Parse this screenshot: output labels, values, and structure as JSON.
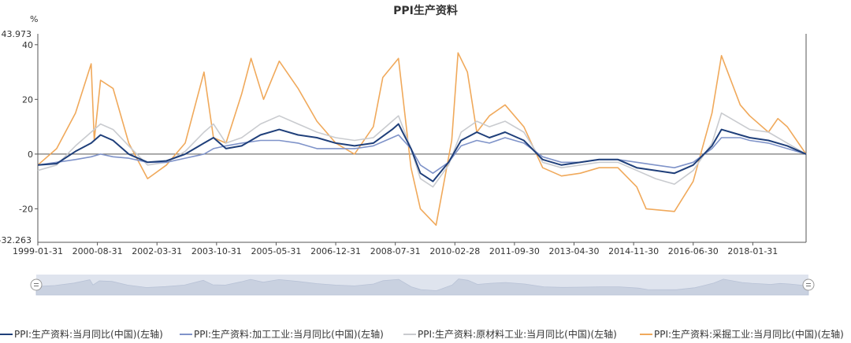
{
  "chart_data": {
    "type": "line",
    "title": "PPI生产资料",
    "y_unit": "%",
    "ylim": [
      -32.263,
      43.973
    ],
    "y_ticks": [
      40,
      20,
      0,
      -20
    ],
    "y_extent_labels": [
      "43.973",
      "-32.263"
    ],
    "x_tick_labels": [
      "1999-01-31",
      "2000-08-31",
      "2002-03-31",
      "2003-10-31",
      "2005-05-31",
      "2006-12-31",
      "2008-07-31",
      "2010-02-28",
      "2011-09-30",
      "2013-04-30",
      "2014-11-30",
      "2016-06-30",
      "2018-01-31"
    ],
    "x_range": [
      "1999-01-31",
      "2019-06-30"
    ],
    "grid": false,
    "legend_position": "bottom",
    "has_zoom_slider": true,
    "series": [
      {
        "name": "PPI:生产资料:当月同比(中国)(左轴)",
        "color": "#1f3f7a",
        "points": [
          [
            "1999-01",
            -4
          ],
          [
            "1999-07",
            -3.5
          ],
          [
            "2000-01",
            1
          ],
          [
            "2000-06",
            4
          ],
          [
            "2000-09",
            7
          ],
          [
            "2001-01",
            5
          ],
          [
            "2001-06",
            0
          ],
          [
            "2001-12",
            -3
          ],
          [
            "2002-06",
            -2.5
          ],
          [
            "2002-12",
            0
          ],
          [
            "2003-06",
            4
          ],
          [
            "2003-09",
            6
          ],
          [
            "2004-01",
            2
          ],
          [
            "2004-06",
            3
          ],
          [
            "2004-12",
            7
          ],
          [
            "2005-06",
            9
          ],
          [
            "2005-12",
            7
          ],
          [
            "2006-06",
            6
          ],
          [
            "2006-12",
            4
          ],
          [
            "2007-06",
            3
          ],
          [
            "2007-12",
            4
          ],
          [
            "2008-06",
            9
          ],
          [
            "2008-08",
            11
          ],
          [
            "2008-12",
            2
          ],
          [
            "2009-03",
            -7
          ],
          [
            "2009-07",
            -10
          ],
          [
            "2009-12",
            -3
          ],
          [
            "2010-04",
            5
          ],
          [
            "2010-09",
            8
          ],
          [
            "2011-01",
            6
          ],
          [
            "2011-06",
            8
          ],
          [
            "2011-12",
            5
          ],
          [
            "2012-06",
            -2
          ],
          [
            "2012-12",
            -4
          ],
          [
            "2013-06",
            -3
          ],
          [
            "2013-12",
            -2
          ],
          [
            "2014-06",
            -2
          ],
          [
            "2014-12",
            -5
          ],
          [
            "2015-06",
            -6
          ],
          [
            "2015-12",
            -7
          ],
          [
            "2016-06",
            -4
          ],
          [
            "2016-12",
            3
          ],
          [
            "2017-03",
            9
          ],
          [
            "2017-09",
            7
          ],
          [
            "2017-12",
            6
          ],
          [
            "2018-06",
            5
          ],
          [
            "2018-12",
            3
          ],
          [
            "2019-06",
            0
          ]
        ]
      },
      {
        "name": "PPI:生产资料:加工工业:当月同比(中国)(左轴)",
        "color": "#7f93c9",
        "points": [
          [
            "1999-01",
            -4
          ],
          [
            "1999-07",
            -3
          ],
          [
            "2000-01",
            -2
          ],
          [
            "2000-06",
            -1
          ],
          [
            "2000-09",
            0
          ],
          [
            "2001-01",
            -1
          ],
          [
            "2001-06",
            -1.5
          ],
          [
            "2001-12",
            -3
          ],
          [
            "2002-06",
            -3
          ],
          [
            "2002-12",
            -1.5
          ],
          [
            "2003-06",
            0
          ],
          [
            "2003-09",
            2
          ],
          [
            "2004-01",
            3
          ],
          [
            "2004-06",
            4
          ],
          [
            "2004-12",
            5
          ],
          [
            "2005-06",
            5
          ],
          [
            "2005-12",
            4
          ],
          [
            "2006-06",
            2
          ],
          [
            "2006-12",
            2
          ],
          [
            "2007-06",
            2
          ],
          [
            "2007-12",
            3
          ],
          [
            "2008-06",
            6
          ],
          [
            "2008-08",
            7
          ],
          [
            "2008-12",
            2
          ],
          [
            "2009-03",
            -4
          ],
          [
            "2009-07",
            -7
          ],
          [
            "2009-12",
            -3
          ],
          [
            "2010-04",
            3
          ],
          [
            "2010-09",
            5
          ],
          [
            "2011-01",
            4
          ],
          [
            "2011-06",
            6
          ],
          [
            "2011-12",
            4
          ],
          [
            "2012-06",
            -1
          ],
          [
            "2012-12",
            -3
          ],
          [
            "2013-06",
            -3
          ],
          [
            "2013-12",
            -2
          ],
          [
            "2014-06",
            -2
          ],
          [
            "2014-12",
            -3
          ],
          [
            "2015-06",
            -4
          ],
          [
            "2015-12",
            -5
          ],
          [
            "2016-06",
            -3
          ],
          [
            "2016-12",
            2
          ],
          [
            "2017-03",
            6
          ],
          [
            "2017-09",
            6
          ],
          [
            "2017-12",
            5
          ],
          [
            "2018-06",
            4
          ],
          [
            "2018-12",
            2
          ],
          [
            "2019-06",
            0
          ]
        ]
      },
      {
        "name": "PPI:生产资料:原材料工业:当月同比(中国)(左轴)",
        "color": "#c9cbcf",
        "points": [
          [
            "1999-01",
            -6
          ],
          [
            "1999-07",
            -4
          ],
          [
            "2000-01",
            3
          ],
          [
            "2000-06",
            8
          ],
          [
            "2000-09",
            11
          ],
          [
            "2001-01",
            9
          ],
          [
            "2001-06",
            3
          ],
          [
            "2001-12",
            -4
          ],
          [
            "2002-06",
            -3
          ],
          [
            "2002-12",
            1
          ],
          [
            "2003-06",
            8
          ],
          [
            "2003-09",
            11
          ],
          [
            "2004-01",
            4
          ],
          [
            "2004-06",
            6
          ],
          [
            "2004-12",
            11
          ],
          [
            "2005-06",
            14
          ],
          [
            "2005-12",
            11
          ],
          [
            "2006-06",
            8
          ],
          [
            "2006-12",
            6
          ],
          [
            "2007-06",
            5
          ],
          [
            "2007-12",
            6
          ],
          [
            "2008-06",
            12
          ],
          [
            "2008-08",
            14
          ],
          [
            "2008-12",
            2
          ],
          [
            "2009-03",
            -9
          ],
          [
            "2009-07",
            -12
          ],
          [
            "2009-12",
            -4
          ],
          [
            "2010-04",
            8
          ],
          [
            "2010-09",
            12
          ],
          [
            "2011-01",
            10
          ],
          [
            "2011-06",
            12
          ],
          [
            "2011-12",
            8
          ],
          [
            "2012-06",
            -3
          ],
          [
            "2012-12",
            -5
          ],
          [
            "2013-06",
            -4
          ],
          [
            "2013-12",
            -3
          ],
          [
            "2014-06",
            -3
          ],
          [
            "2014-12",
            -6
          ],
          [
            "2015-06",
            -9
          ],
          [
            "2015-12",
            -11
          ],
          [
            "2016-06",
            -6
          ],
          [
            "2016-12",
            4
          ],
          [
            "2017-03",
            15
          ],
          [
            "2017-09",
            11
          ],
          [
            "2017-12",
            9
          ],
          [
            "2018-06",
            8
          ],
          [
            "2018-12",
            4
          ],
          [
            "2019-06",
            0
          ]
        ]
      },
      {
        "name": "PPI:生产资料:采掘工业:当月同比(中国)(左轴)",
        "color": "#f0a95b",
        "points": [
          [
            "1999-01",
            -4
          ],
          [
            "1999-07",
            2
          ],
          [
            "2000-01",
            15
          ],
          [
            "2000-06",
            33
          ],
          [
            "2000-07",
            5
          ],
          [
            "2000-09",
            27
          ],
          [
            "2001-01",
            24
          ],
          [
            "2001-06",
            4
          ],
          [
            "2001-12",
            -9
          ],
          [
            "2002-06",
            -4
          ],
          [
            "2002-12",
            4
          ],
          [
            "2003-06",
            30
          ],
          [
            "2003-09",
            6
          ],
          [
            "2004-01",
            4
          ],
          [
            "2004-06",
            22
          ],
          [
            "2004-09",
            35
          ],
          [
            "2005-01",
            20
          ],
          [
            "2005-06",
            34
          ],
          [
            "2005-12",
            24
          ],
          [
            "2006-06",
            12
          ],
          [
            "2006-12",
            4
          ],
          [
            "2007-06",
            0
          ],
          [
            "2007-12",
            10
          ],
          [
            "2008-03",
            28
          ],
          [
            "2008-08",
            35
          ],
          [
            "2008-12",
            -5
          ],
          [
            "2009-03",
            -20
          ],
          [
            "2009-08",
            -26
          ],
          [
            "2010-01",
            5
          ],
          [
            "2010-03",
            37
          ],
          [
            "2010-06",
            30
          ],
          [
            "2010-09",
            8
          ],
          [
            "2011-01",
            14
          ],
          [
            "2011-06",
            18
          ],
          [
            "2011-12",
            10
          ],
          [
            "2012-06",
            -5
          ],
          [
            "2012-12",
            -8
          ],
          [
            "2013-06",
            -7
          ],
          [
            "2013-12",
            -5
          ],
          [
            "2014-06",
            -5
          ],
          [
            "2014-12",
            -12
          ],
          [
            "2015-03",
            -20
          ],
          [
            "2015-12",
            -21
          ],
          [
            "2016-06",
            -10
          ],
          [
            "2016-12",
            15
          ],
          [
            "2017-03",
            36
          ],
          [
            "2017-09",
            18
          ],
          [
            "2017-12",
            14
          ],
          [
            "2018-06",
            8
          ],
          [
            "2018-09",
            13
          ],
          [
            "2018-12",
            10
          ],
          [
            "2019-06",
            0
          ]
        ]
      }
    ]
  }
}
